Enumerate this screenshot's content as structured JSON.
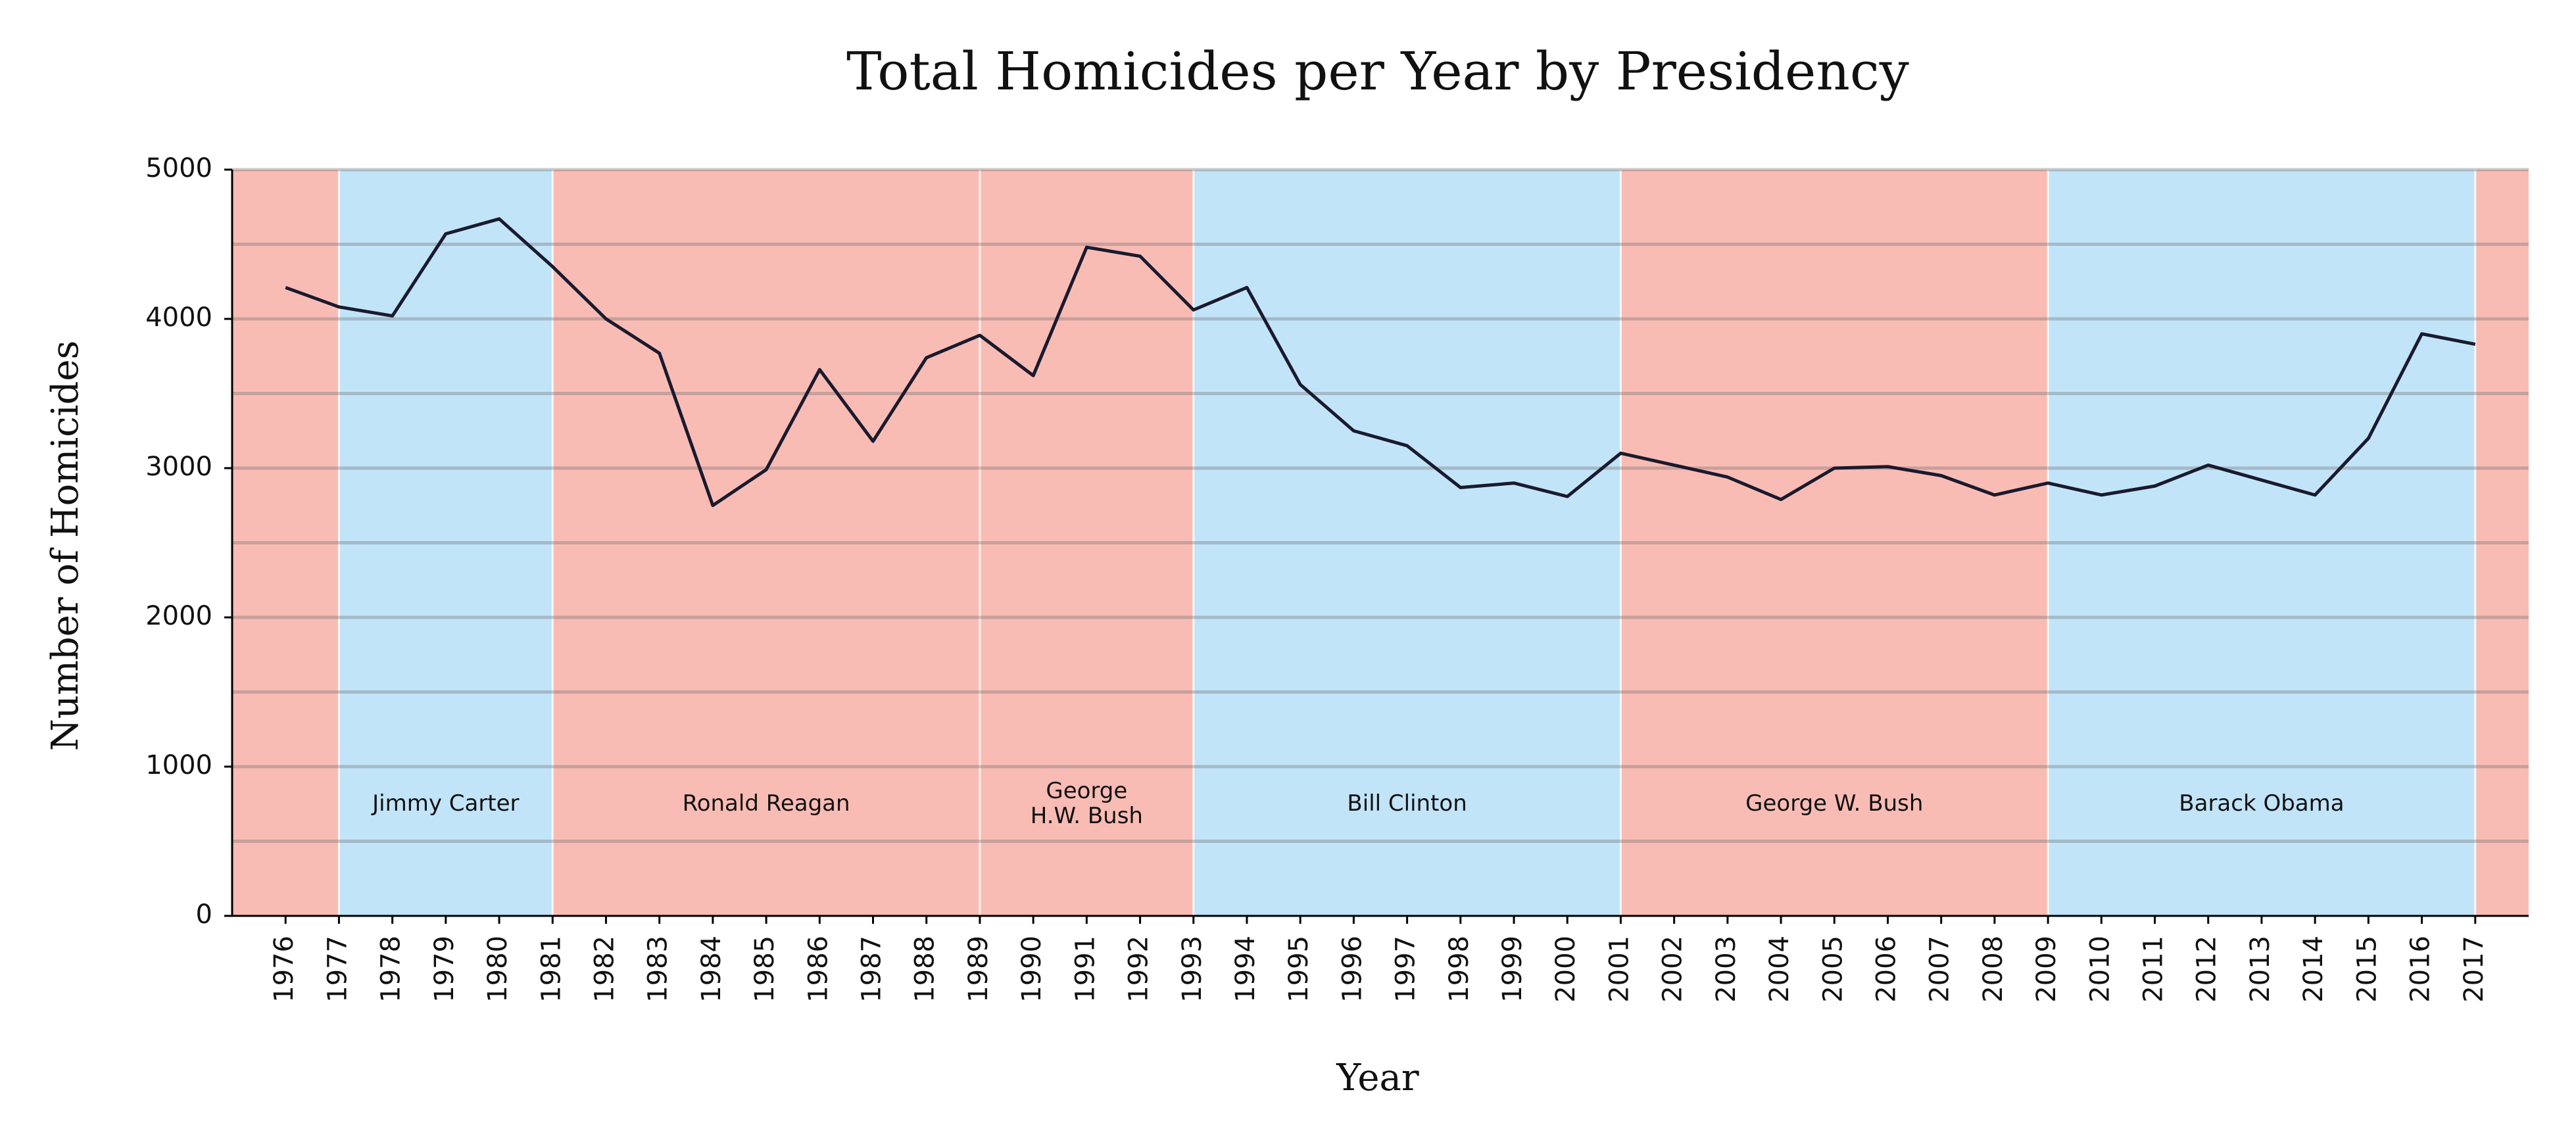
{
  "chart_data": {
    "type": "line",
    "title": "Total Homicides per Year by Presidency",
    "xlabel": "Year",
    "ylabel": "Number of Homicides",
    "xlim": [
      1975,
      2018
    ],
    "ylim": [
      0,
      5000
    ],
    "yticks": [
      0,
      1000,
      2000,
      3000,
      4000,
      5000
    ],
    "grid": true,
    "x": [
      1976,
      1977,
      1978,
      1979,
      1980,
      1981,
      1982,
      1983,
      1984,
      1985,
      1986,
      1987,
      1988,
      1989,
      1990,
      1991,
      1992,
      1993,
      1994,
      1995,
      1996,
      1997,
      1998,
      1999,
      2000,
      2001,
      2002,
      2003,
      2004,
      2005,
      2006,
      2007,
      2008,
      2009,
      2010,
      2011,
      2012,
      2013,
      2014,
      2015,
      2016,
      2017
    ],
    "series": [
      {
        "values": [
          4210,
          4080,
          4020,
          4570,
          4670,
          4350,
          4000,
          3770,
          2750,
          2990,
          3660,
          3180,
          3740,
          3890,
          3620,
          4480,
          4420,
          4060,
          4210,
          3560,
          3250,
          3150,
          2870,
          2900,
          2810,
          3100,
          3020,
          2940,
          2790,
          3000,
          3010,
          2950,
          2820,
          2900,
          2820,
          2880,
          3020,
          2920,
          2820,
          3200,
          3900,
          3830
        ],
        "color": "#1a1a2e"
      }
    ],
    "presidencies": [
      {
        "label": "",
        "start": 1975,
        "end": 1977,
        "party_color": "#f9bcb4"
      },
      {
        "label": "Jimmy Carter",
        "start": 1977,
        "end": 1981,
        "party_color": "#c2e4f8"
      },
      {
        "label": "Ronald Reagan",
        "start": 1981,
        "end": 1989,
        "party_color": "#f9bcb4"
      },
      {
        "label": "George\nH.W. Bush",
        "start": 1989,
        "end": 1993,
        "party_color": "#f9bcb4"
      },
      {
        "label": "Bill Clinton",
        "start": 1993,
        "end": 2001,
        "party_color": "#c2e4f8"
      },
      {
        "label": "George W. Bush",
        "start": 2001,
        "end": 2009,
        "party_color": "#f9bcb4"
      },
      {
        "label": "Barack Obama",
        "start": 2009,
        "end": 2017,
        "party_color": "#c2e4f8"
      },
      {
        "label": "",
        "start": 2017,
        "end": 2018,
        "party_color": "#f9bcb4"
      }
    ]
  }
}
